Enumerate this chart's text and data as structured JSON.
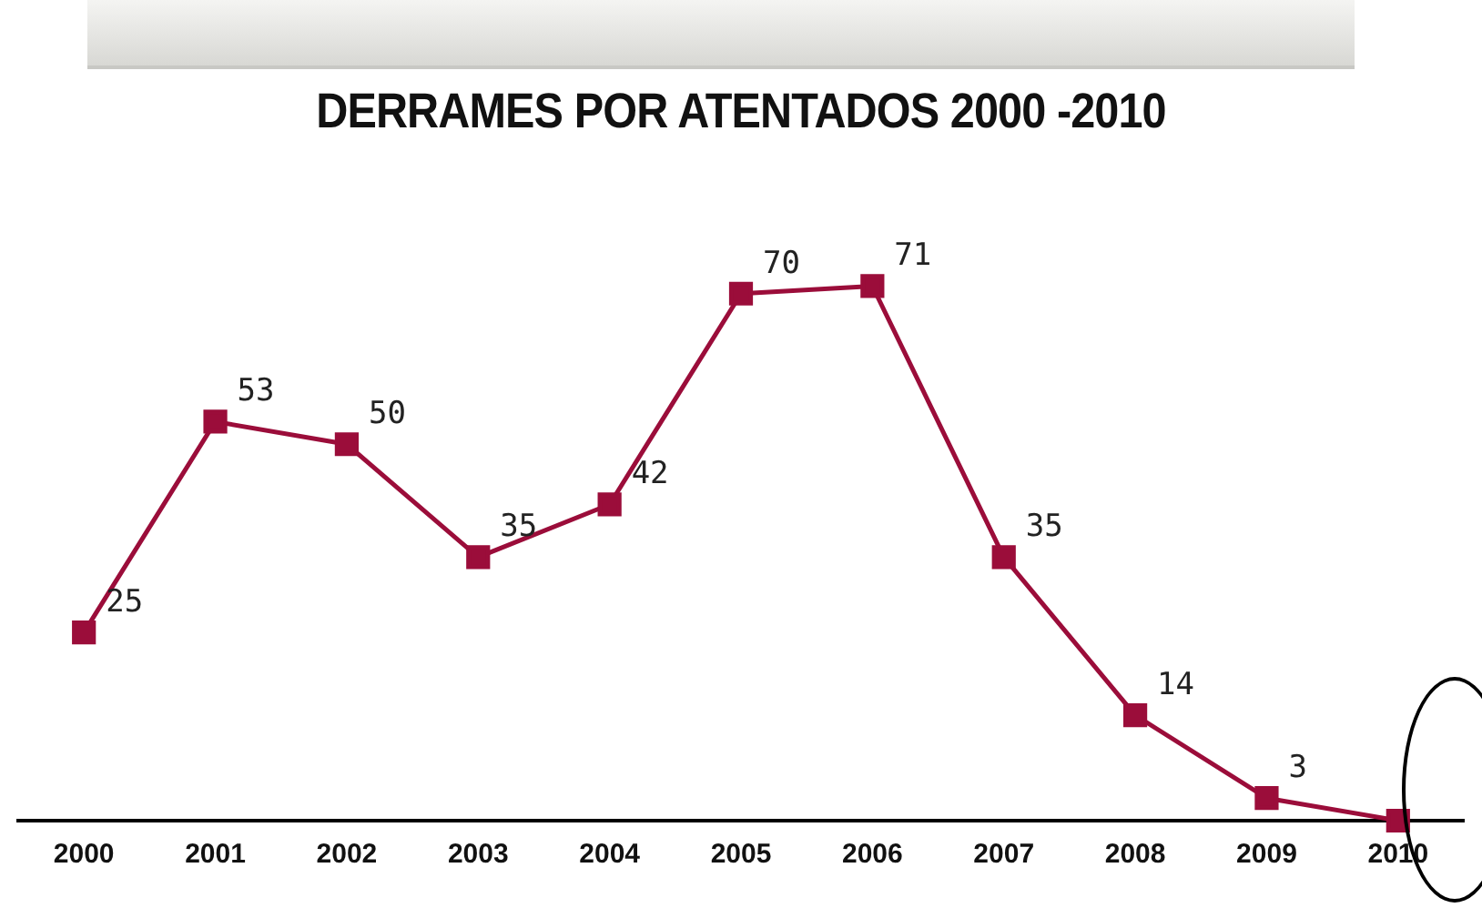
{
  "chart_data": {
    "type": "line",
    "title": "DERRAMES POR ATENTADOS 2000 -2010",
    "categories": [
      "2000",
      "2001",
      "2002",
      "2003",
      "2004",
      "2005",
      "2006",
      "2007",
      "2008",
      "2009",
      "2010"
    ],
    "series": [
      {
        "color": "#9b0d3a",
        "values": [
          25,
          53,
          50,
          35,
          42,
          70,
          71,
          35,
          14,
          3,
          0
        ],
        "value_labels": [
          "25",
          "53",
          "50",
          "35",
          "42",
          "70",
          "71",
          "35",
          "14",
          "3",
          null
        ]
      }
    ],
    "marker": "square",
    "line_style": "solid",
    "grid": false,
    "legend": false,
    "tick_labels": "x"
  }
}
